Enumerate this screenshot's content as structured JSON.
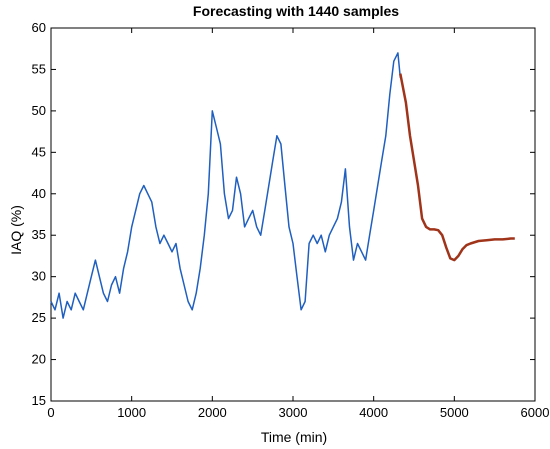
{
  "chart_data": {
    "type": "line",
    "title": "Forecasting with 1440 samples",
    "xlabel": "Time (min)",
    "ylabel": "IAQ (%)",
    "xlim": [
      0,
      6000
    ],
    "ylim": [
      15,
      60
    ],
    "xticks": [
      "0",
      "1000",
      "2000",
      "3000",
      "4000",
      "5000",
      "6000"
    ],
    "yticks": [
      "15",
      "20",
      "25",
      "30",
      "35",
      "40",
      "45",
      "50",
      "55",
      "60"
    ],
    "grid": false,
    "series": [
      {
        "color": "#1f5fbf",
        "x": [
          0,
          50,
          100,
          150,
          200,
          250,
          300,
          350,
          400,
          450,
          500,
          550,
          600,
          650,
          700,
          750,
          800,
          850,
          900,
          950,
          1000,
          1050,
          1100,
          1150,
          1200,
          1250,
          1300,
          1350,
          1400,
          1450,
          1500,
          1550,
          1600,
          1650,
          1700,
          1750,
          1800,
          1850,
          1900,
          1950,
          2000,
          2050,
          2100,
          2150,
          2200,
          2250,
          2300,
          2350,
          2400,
          2450,
          2500,
          2550,
          2600,
          2650,
          2700,
          2750,
          2800,
          2850,
          2900,
          2950,
          3000,
          3050,
          3100,
          3150,
          3200,
          3250,
          3300,
          3350,
          3400,
          3450,
          3500,
          3550,
          3600,
          3650,
          3700,
          3750,
          3800,
          3850,
          3900,
          3950,
          4000,
          4050,
          4100,
          4150,
          4200,
          4250,
          4300,
          4330
        ],
        "y": [
          27,
          26,
          28,
          25,
          27,
          26,
          28,
          27,
          26,
          28,
          30,
          32,
          30,
          28,
          27,
          29,
          30,
          28,
          31,
          33,
          36,
          38,
          40,
          41,
          40,
          39,
          36,
          34,
          35,
          34,
          33,
          34,
          31,
          29,
          27,
          26,
          28,
          31,
          35,
          40,
          50,
          48,
          46,
          40,
          37,
          38,
          42,
          40,
          36,
          37,
          38,
          36,
          35,
          38,
          41,
          44,
          47,
          46,
          41,
          36,
          34,
          30,
          26,
          27,
          34,
          35,
          34,
          35,
          33,
          35,
          36,
          37,
          39,
          43,
          36,
          32,
          34,
          33,
          32,
          35,
          38,
          41,
          44,
          47,
          52,
          56,
          57,
          54
        ]
      },
      {
        "color": "#a0341a",
        "x": [
          4330,
          4400,
          4450,
          4500,
          4550,
          4600,
          4650,
          4700,
          4750,
          4800,
          4850,
          4900,
          4950,
          5000,
          5050,
          5100,
          5150,
          5200,
          5300,
          5400,
          5500,
          5600,
          5700,
          5750
        ],
        "y": [
          54.5,
          51,
          47,
          44,
          41,
          37,
          36,
          35.7,
          35.7,
          35.6,
          35,
          33.5,
          32.2,
          32,
          32.5,
          33.3,
          33.8,
          34,
          34.3,
          34.4,
          34.5,
          34.5,
          34.6,
          34.6
        ]
      }
    ]
  }
}
